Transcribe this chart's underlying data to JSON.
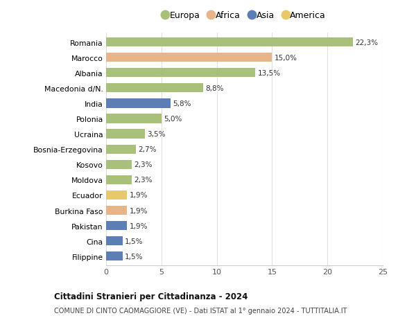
{
  "categories": [
    "Romania",
    "Marocco",
    "Albania",
    "Macedonia d/N.",
    "India",
    "Polonia",
    "Ucraina",
    "Bosnia-Erzegovina",
    "Kosovo",
    "Moldova",
    "Ecuador",
    "Burkina Faso",
    "Pakistan",
    "Cina",
    "Filippine"
  ],
  "values": [
    22.3,
    15.0,
    13.5,
    8.8,
    5.8,
    5.0,
    3.5,
    2.7,
    2.3,
    2.3,
    1.9,
    1.9,
    1.9,
    1.5,
    1.5
  ],
  "labels": [
    "22,3%",
    "15,0%",
    "13,5%",
    "8,8%",
    "5,8%",
    "5,0%",
    "3,5%",
    "2,7%",
    "2,3%",
    "2,3%",
    "1,9%",
    "1,9%",
    "1,9%",
    "1,5%",
    "1,5%"
  ],
  "colors": [
    "#a8c07a",
    "#e8b48a",
    "#a8c07a",
    "#a8c07a",
    "#5b7fb5",
    "#a8c07a",
    "#a8c07a",
    "#a8c07a",
    "#a8c07a",
    "#a8c07a",
    "#e8c96a",
    "#e8b48a",
    "#5b7fb5",
    "#5b7fb5",
    "#5b7fb5"
  ],
  "legend_labels": [
    "Europa",
    "Africa",
    "Asia",
    "America"
  ],
  "legend_colors": [
    "#a8c07a",
    "#e8b48a",
    "#5b7fb5",
    "#e8c96a"
  ],
  "title": "Cittadini Stranieri per Cittadinanza - 2024",
  "subtitle": "COMUNE DI CINTO CAOMAGGIORE (VE) - Dati ISTAT al 1° gennaio 2024 - TUTTITALIA.IT",
  "xlim": [
    0,
    25
  ],
  "xticks": [
    0,
    5,
    10,
    15,
    20,
    25
  ],
  "bg_color": "#ffffff",
  "grid_color": "#e0e0e0",
  "bar_height": 0.6
}
